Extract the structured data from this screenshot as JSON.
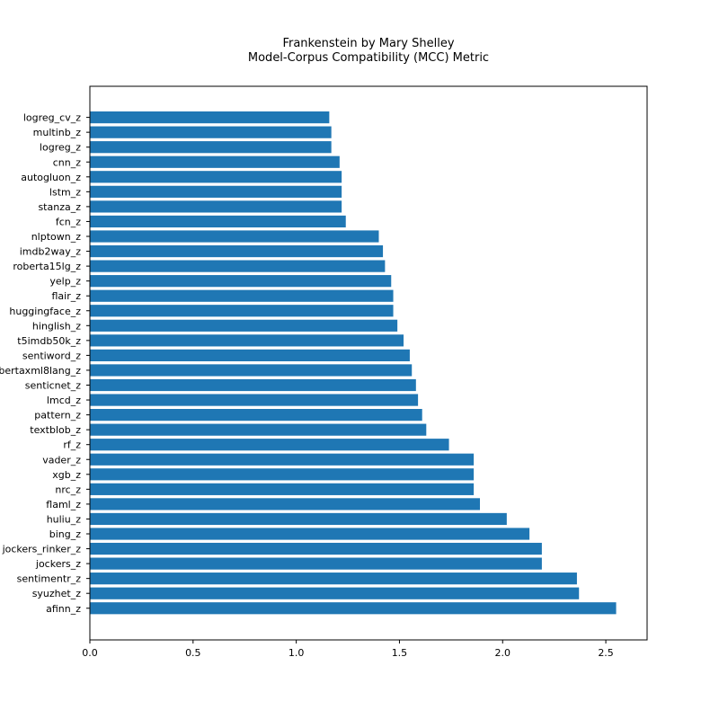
{
  "chart_data": {
    "type": "bar",
    "orientation": "horizontal",
    "title": "Frankenstein by Mary Shelley",
    "subtitle": "Model-Corpus Compatibility (MCC) Metric",
    "xlabel": "",
    "ylabel": "",
    "xlim": [
      0,
      2.7
    ],
    "xticks": [
      "0.0",
      "0.5",
      "1.0",
      "1.5",
      "2.0",
      "2.5"
    ],
    "bar_color": "#1f77b4",
    "grid": false,
    "categories": [
      "logreg_cv_z",
      "multinb_z",
      "logreg_z",
      "cnn_z",
      "autogluon_z",
      "lstm_z",
      "stanza_z",
      "fcn_z",
      "nlptown_z",
      "imdb2way_z",
      "roberta15lg_z",
      "yelp_z",
      "flair_z",
      "huggingface_z",
      "hinglish_z",
      "t5imdb50k_z",
      "sentiword_z",
      "bertaxml8lang_z",
      "senticnet_z",
      "lmcd_z",
      "pattern_z",
      "textblob_z",
      "rf_z",
      "vader_z",
      "xgb_z",
      "nrc_z",
      "flaml_z",
      "huliu_z",
      "bing_z",
      "jockers_rinker_z",
      "jockers_z",
      "sentimentr_z",
      "syuzhet_z",
      "afinn_z"
    ],
    "values": [
      1.16,
      1.17,
      1.17,
      1.21,
      1.22,
      1.22,
      1.22,
      1.24,
      1.4,
      1.42,
      1.43,
      1.46,
      1.47,
      1.47,
      1.49,
      1.52,
      1.55,
      1.56,
      1.58,
      1.59,
      1.61,
      1.63,
      1.74,
      1.86,
      1.86,
      1.86,
      1.89,
      2.02,
      2.13,
      2.19,
      2.19,
      2.36,
      2.37,
      2.55
    ]
  }
}
